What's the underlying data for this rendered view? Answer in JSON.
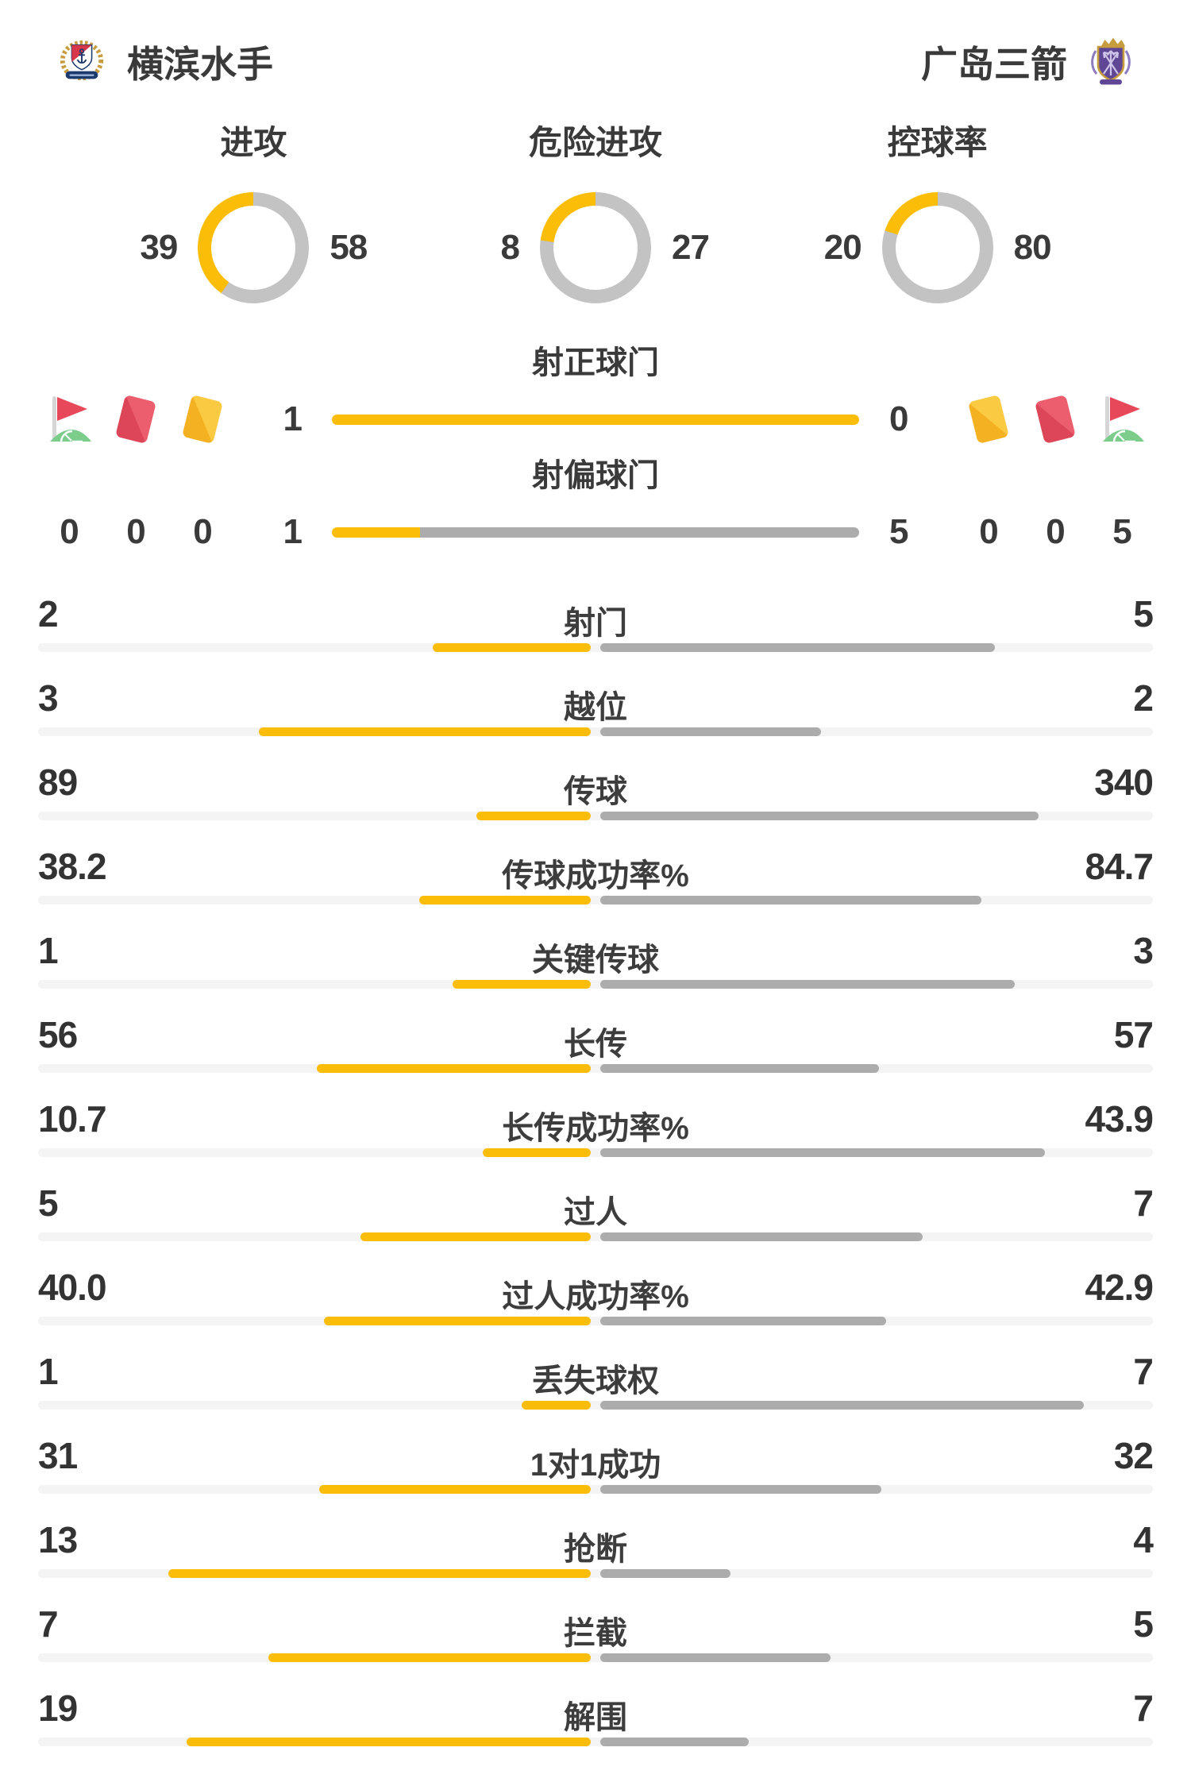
{
  "header": {
    "home": {
      "name": "横滨水手"
    },
    "away": {
      "name": "广岛三箭"
    }
  },
  "donuts": [
    {
      "title": "进攻",
      "home": 39,
      "away": 58
    },
    {
      "title": "危险进攻",
      "home": 8,
      "away": 27
    },
    {
      "title": "控球率",
      "home": 20,
      "away": 80
    }
  ],
  "shots": [
    {
      "title": "射正球门",
      "home": 1,
      "away": 0
    },
    {
      "title": "射偏球门",
      "home": 1,
      "away": 5
    }
  ],
  "discipline": {
    "home": {
      "icons": [
        "corner-flag",
        "red-card",
        "yellow-card"
      ],
      "values": [
        0,
        0,
        0
      ]
    },
    "away": {
      "icons": [
        "yellow-card",
        "red-card",
        "corner-flag"
      ],
      "values": [
        0,
        0,
        5
      ]
    }
  },
  "stats": [
    {
      "label": "射门",
      "home": "2",
      "away": "5"
    },
    {
      "label": "越位",
      "home": "3",
      "away": "2"
    },
    {
      "label": "传球",
      "home": "89",
      "away": "340"
    },
    {
      "label": "传球成功率%",
      "home": "38.2",
      "away": "84.7"
    },
    {
      "label": "关键传球",
      "home": "1",
      "away": "3"
    },
    {
      "label": "长传",
      "home": "56",
      "away": "57"
    },
    {
      "label": "长传成功率%",
      "home": "10.7",
      "away": "43.9"
    },
    {
      "label": "过人",
      "home": "5",
      "away": "7"
    },
    {
      "label": "过人成功率%",
      "home": "40.0",
      "away": "42.9"
    },
    {
      "label": "丢失球权",
      "home": "1",
      "away": "7"
    },
    {
      "label": "1对1成功",
      "home": "31",
      "away": "32"
    },
    {
      "label": "抢断",
      "home": "13",
      "away": "4"
    },
    {
      "label": "拦截",
      "home": "7",
      "away": "5"
    },
    {
      "label": "解围",
      "home": "19",
      "away": "7"
    }
  ],
  "colors": {
    "accent": "#fbbd08",
    "bar_gray": "#acacac",
    "donut_gray": "#c3c3c3",
    "track": "#f4f4f4",
    "text": "#3b3b3b",
    "red_card": "#e4505f",
    "yellow_card": "#f7bb2a",
    "flag_red": "#e8495a",
    "flag_green": "#7ccd8c"
  },
  "chart_data": [
    {
      "type": "pie",
      "subtype": "donut",
      "title": "进攻",
      "categories": [
        "横滨水手",
        "广岛三箭"
      ],
      "values": [
        39,
        58
      ],
      "colors": [
        "#fbbd08",
        "#c3c3c3"
      ],
      "value_labels_position": "sides"
    },
    {
      "type": "pie",
      "subtype": "donut",
      "title": "危险进攻",
      "categories": [
        "横滨水手",
        "广岛三箭"
      ],
      "values": [
        8,
        27
      ],
      "colors": [
        "#fbbd08",
        "#c3c3c3"
      ],
      "value_labels_position": "sides"
    },
    {
      "type": "pie",
      "subtype": "donut",
      "title": "控球率",
      "categories": [
        "横滨水手",
        "广岛三箭"
      ],
      "values": [
        20,
        80
      ],
      "colors": [
        "#fbbd08",
        "#c3c3c3"
      ],
      "value_labels_position": "sides"
    },
    {
      "type": "bar",
      "title": "射正球门",
      "categories": [
        "横滨水手",
        "广岛三箭"
      ],
      "values": [
        1,
        0
      ],
      "colors": [
        "#fbbd08",
        "#acacac"
      ],
      "layout": "single-proportional-bar"
    },
    {
      "type": "bar",
      "title": "射偏球门",
      "categories": [
        "横滨水手",
        "广岛三箭"
      ],
      "values": [
        1,
        5
      ],
      "colors": [
        "#fbbd08",
        "#acacac"
      ],
      "layout": "single-proportional-bar"
    },
    {
      "type": "bar",
      "title": "比赛数据对比",
      "categories": [
        "射门",
        "越位",
        "传球",
        "传球成功率%",
        "关键传球",
        "长传",
        "长传成功率%",
        "过人",
        "过人成功率%",
        "丢失球权",
        "1对1成功",
        "抢断",
        "拦截",
        "解围"
      ],
      "series": [
        {
          "name": "横滨水手",
          "color": "#fbbd08",
          "values": [
            2,
            3,
            89,
            38.2,
            1,
            56,
            10.7,
            5,
            40.0,
            1,
            31,
            13,
            7,
            19
          ]
        },
        {
          "name": "广岛三箭",
          "color": "#acacac",
          "values": [
            5,
            2,
            340,
            84.7,
            3,
            57,
            43.9,
            7,
            42.9,
            7,
            32,
            4,
            5,
            7
          ]
        }
      ],
      "layout": "center-out-paired-bars"
    },
    {
      "type": "table",
      "title": "",
      "columns": [
        "corner-flag",
        "red-card",
        "yellow-card"
      ],
      "rows": [
        {
          "name": "横滨水手",
          "corner_flag": 0,
          "red_card": 0,
          "yellow_card": 0
        },
        {
          "name": "广岛三箭",
          "corner_flag": 5,
          "red_card": 0,
          "yellow_card": 0
        }
      ]
    }
  ]
}
